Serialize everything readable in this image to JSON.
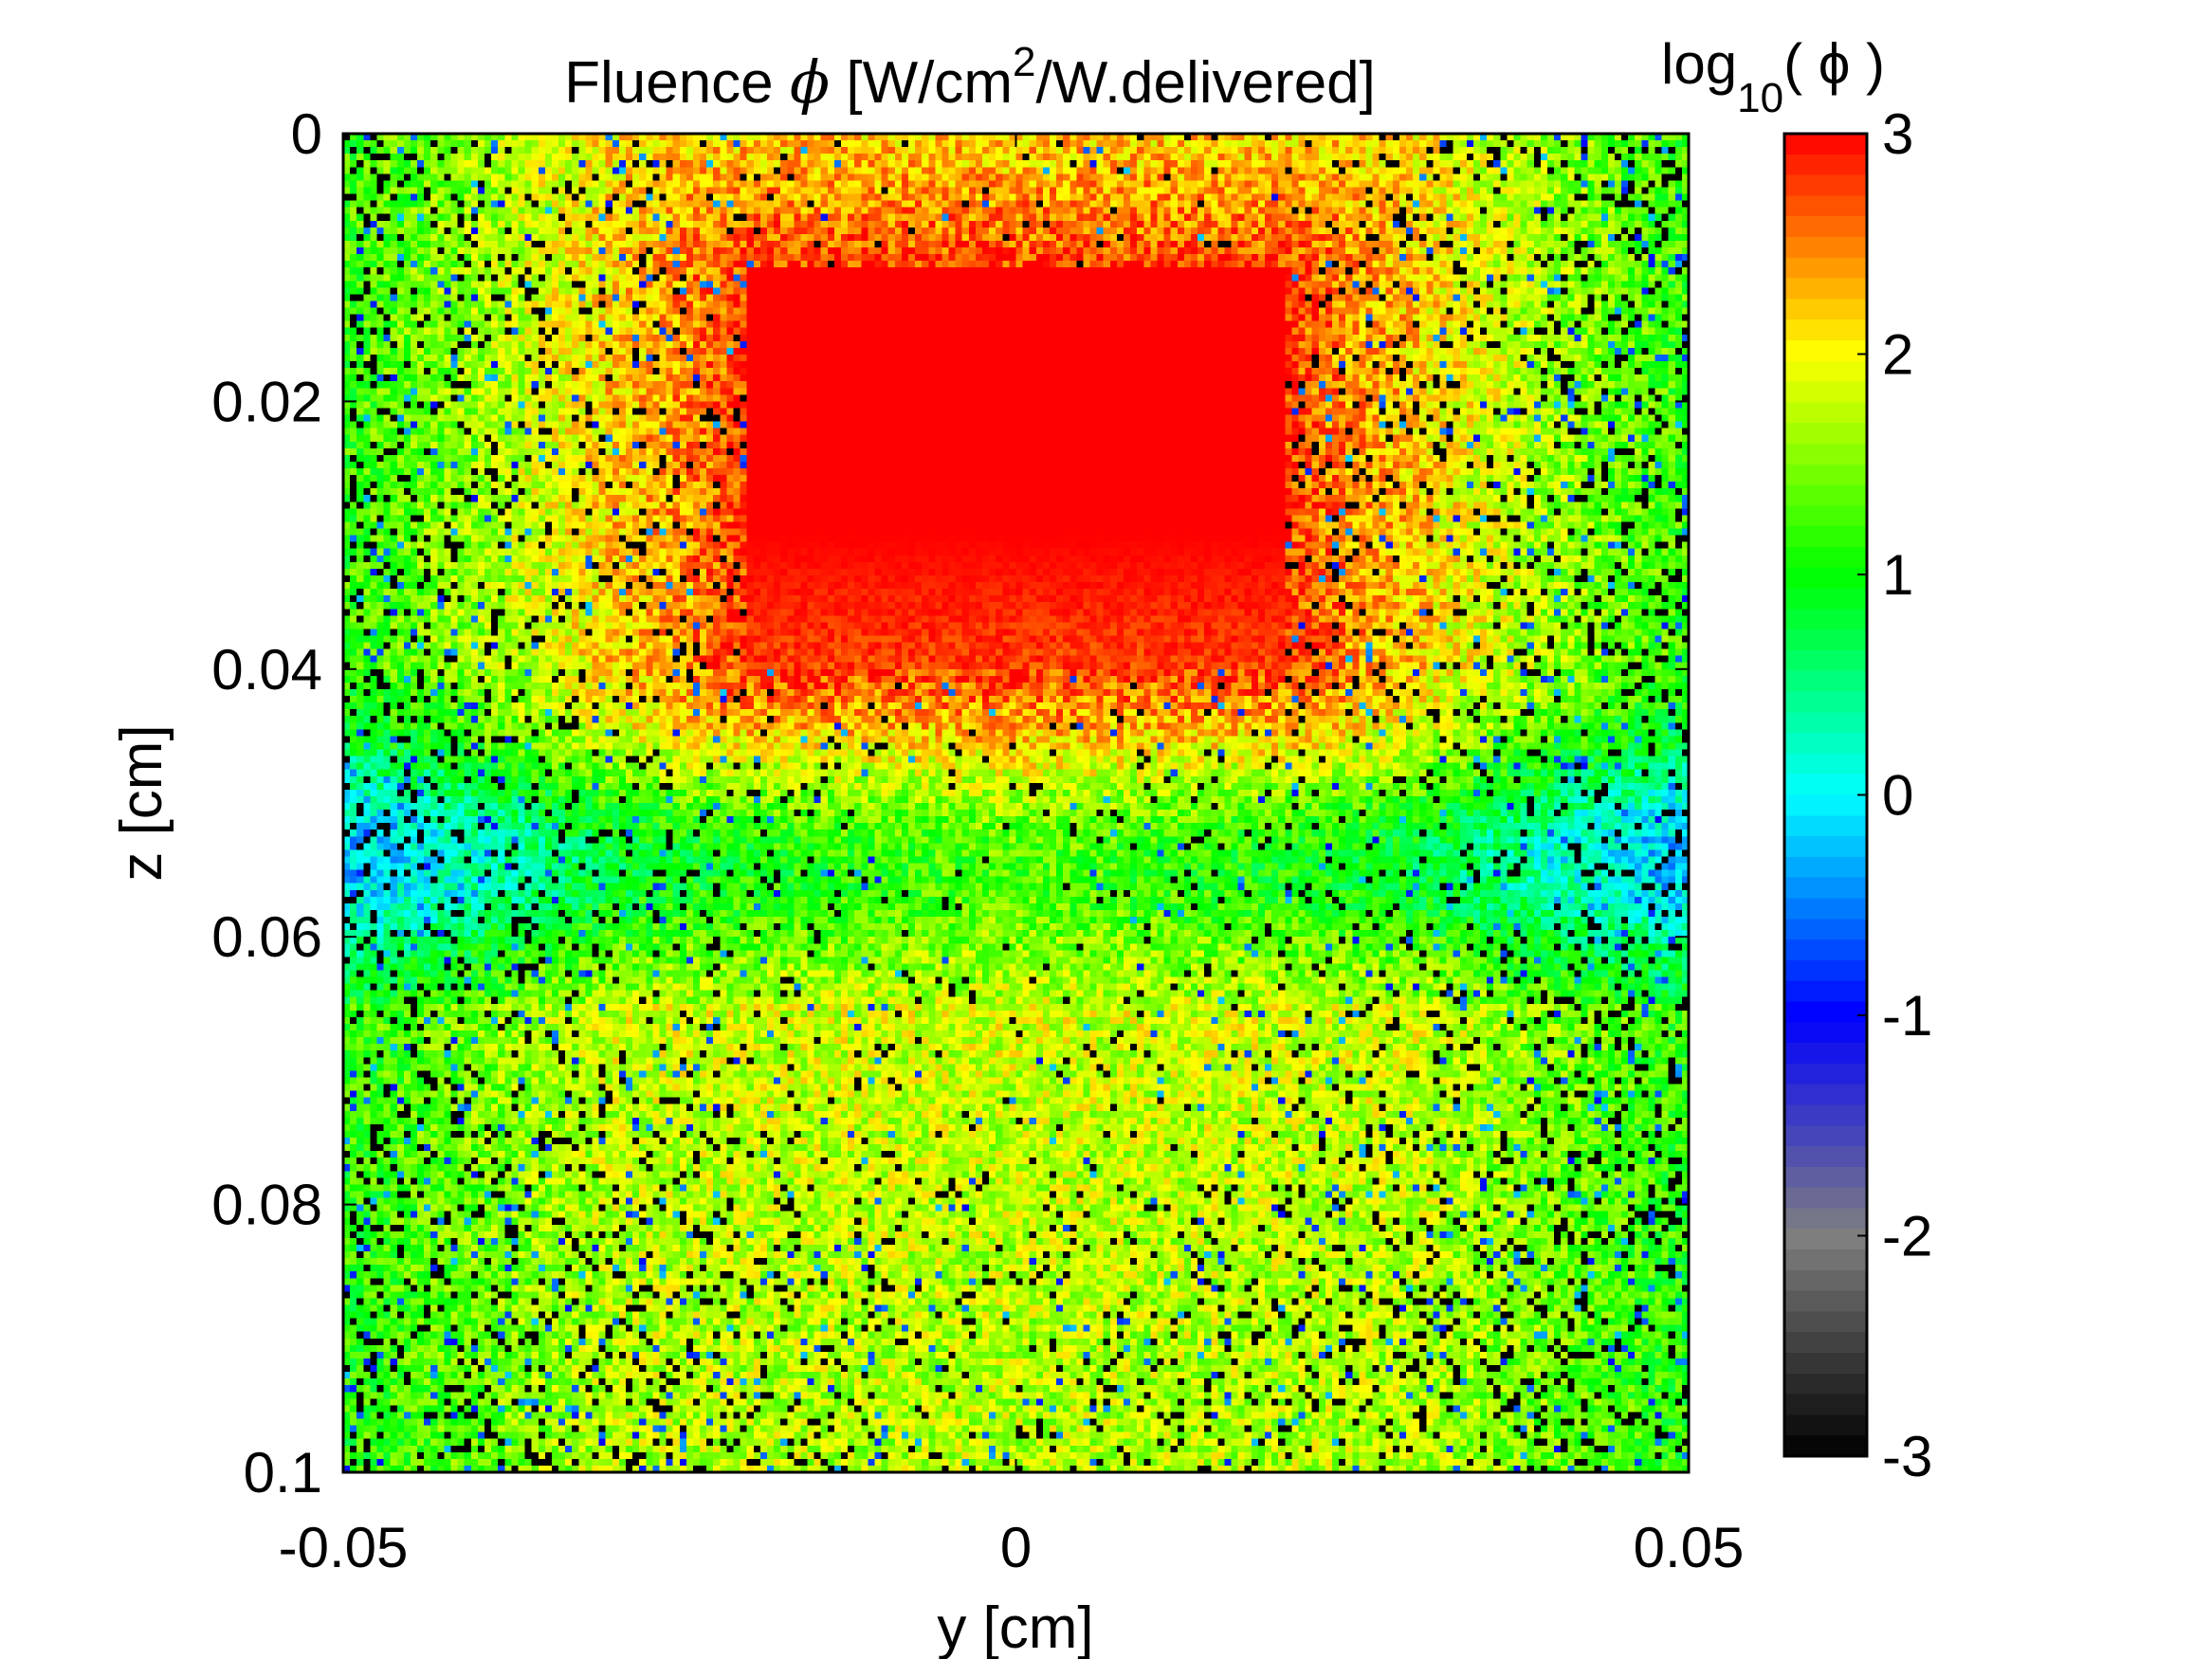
{
  "chart_data": {
    "type": "heatmap",
    "title": {
      "prefix": "Fluence ",
      "symbol": "ϕ",
      "mid": " [W/cm",
      "sup": "2",
      "suffix": "/W.delivered]"
    },
    "xlabel": "y [cm]",
    "ylabel": "z [cm]",
    "xlim": [
      -0.05,
      0.05
    ],
    "ylim": [
      0,
      0.1
    ],
    "y_reversed": true,
    "x_ticks": [
      -0.05,
      0,
      0.05
    ],
    "x_tick_labels": [
      "-0.05",
      "0",
      "0.05"
    ],
    "y_ticks": [
      0,
      0.02,
      0.04,
      0.06,
      0.08,
      0.1
    ],
    "y_tick_labels": [
      "0",
      "0.02",
      "0.04",
      "0.06",
      "0.08",
      "0.1"
    ],
    "grid": false,
    "colorbar": {
      "label": {
        "base": "log",
        "sub": "10",
        "rest": "( ϕ )"
      },
      "range": [
        -3,
        3
      ],
      "ticks": [
        3,
        2,
        1,
        0,
        -1,
        -2,
        -3
      ],
      "tick_labels": [
        "3",
        "2",
        "1",
        "0",
        "-1",
        "-2",
        "-3"
      ],
      "colors": [
        "#000000",
        "#808080",
        "#0000ff",
        "#00ffff",
        "#00ff00",
        "#ffff00",
        "#ff0000"
      ]
    },
    "features": {
      "saturated_block": {
        "y_range": [
          -0.02,
          0.02
        ],
        "z_range": [
          0.01,
          0.04
        ],
        "log_value": 3
      },
      "background_log_value": 1.7,
      "transition_depth": 0.045
    }
  }
}
